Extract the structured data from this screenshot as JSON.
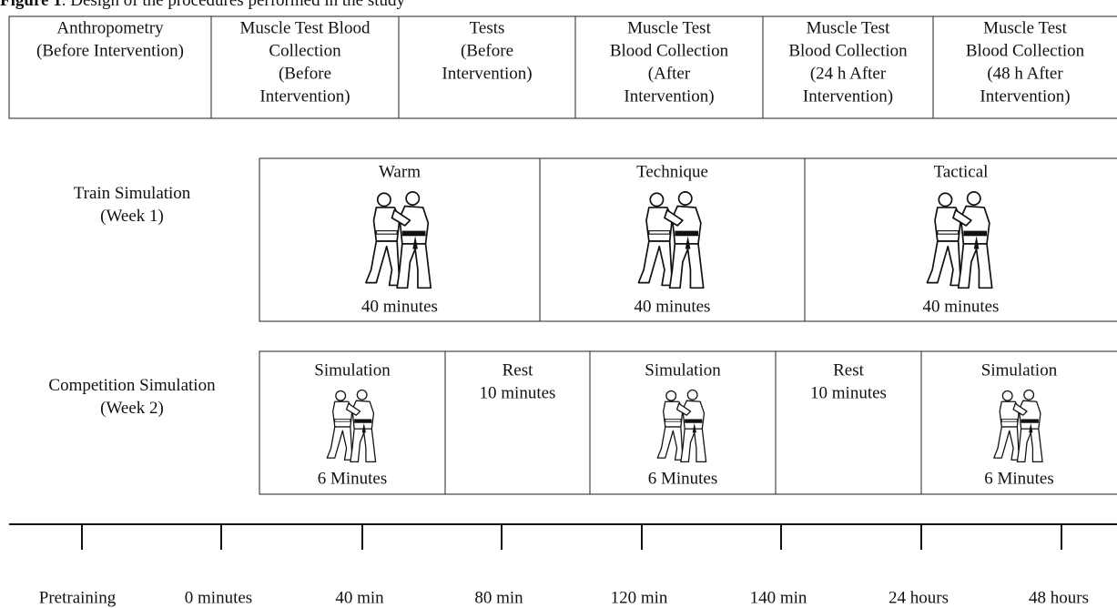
{
  "caption": {
    "label": "Figure 1",
    "text": ". Design of the procedures performed in the study"
  },
  "table": {
    "cells": [
      [
        "Anthropometry",
        "(Before Intervention)"
      ],
      [
        "Muscle Test Blood",
        "Collection",
        "(Before",
        "Intervention)"
      ],
      [
        "Tests",
        "(Before",
        "Intervention)"
      ],
      [
        "Muscle Test",
        "Blood Collection",
        "(After",
        "Intervention)"
      ],
      [
        "Muscle Test",
        "Blood Collection",
        "(24 h After",
        "Intervention)"
      ],
      [
        "Muscle Test",
        "Blood Collection",
        "(48 h After",
        "Intervention)"
      ]
    ]
  },
  "train": {
    "label": [
      "Train Simulation",
      "(Week 1)"
    ],
    "phases": [
      {
        "name": "Warm",
        "duration": "40 minutes"
      },
      {
        "name": "Technique",
        "duration": "40 minutes"
      },
      {
        "name": "Tactical",
        "duration": "40 minutes"
      }
    ]
  },
  "competition": {
    "label": [
      "Competition Simulation",
      "(Week 2)"
    ],
    "phases": [
      {
        "name": "Simulation",
        "duration": "6 Minutes"
      },
      {
        "name": "Rest",
        "duration": "10 minutes"
      },
      {
        "name": "Simulation",
        "duration": "6 Minutes"
      },
      {
        "name": "Rest",
        "duration": "10 minutes"
      },
      {
        "name": "Simulation",
        "duration": "6 Minutes"
      }
    ]
  },
  "timeline": [
    "Pretraining",
    "0 minutes",
    "40 min",
    "80 min",
    "120 min",
    "140 min",
    "24 hours",
    "48 hours"
  ]
}
